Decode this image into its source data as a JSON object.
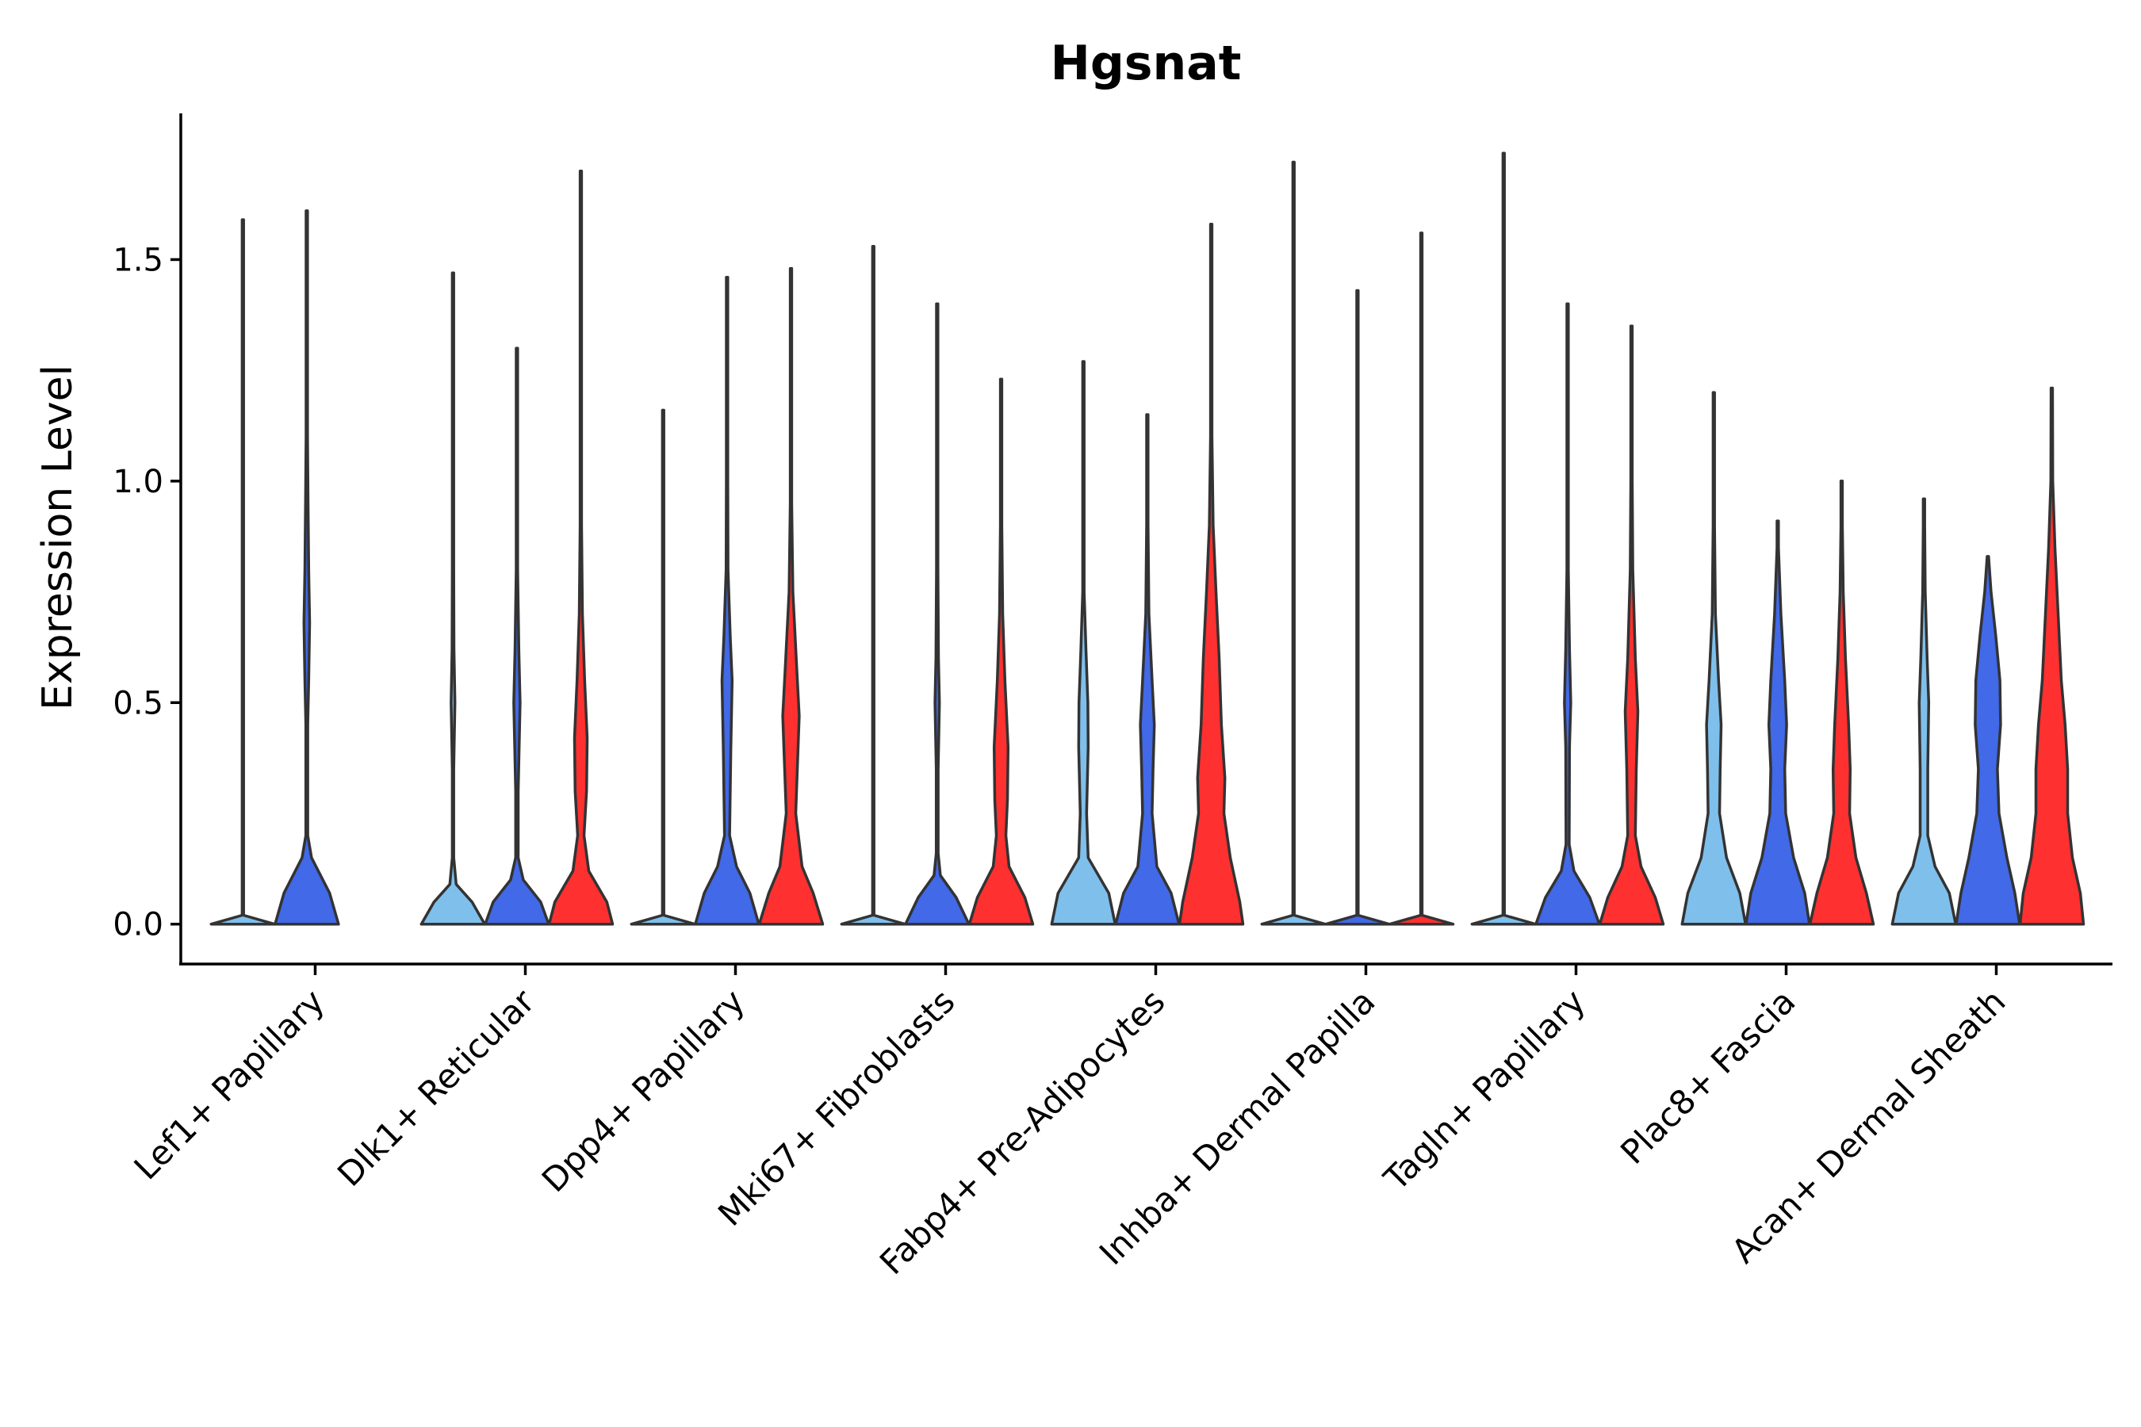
{
  "chart_data": {
    "type": "violin",
    "title": "Hgsnat",
    "xlabel": "",
    "ylabel": "Expression Level",
    "ylim": [
      -0.09,
      1.83
    ],
    "yticks": [
      0.0,
      0.5,
      1.0,
      1.5
    ],
    "ytick_labels": [
      "0.0",
      "0.5",
      "1.0",
      "1.5"
    ],
    "grid": false,
    "legend": "none",
    "series": [
      {
        "name": "group-1",
        "color": "#7fbfeb"
      },
      {
        "name": "group-2",
        "color": "#4169e8"
      },
      {
        "name": "group-3",
        "color": "#ff3030"
      }
    ],
    "categories": [
      "Lef1+ Papillary",
      "Dlk1+ Reticular",
      "Dpp4+ Papillary",
      "Mki67+ Fibroblasts",
      "Fabp4+ Pre-Adipocytes",
      "Inhba+ Dermal Papilla",
      "Tagln+ Papillary",
      "Plac8+ Fascia",
      "Acan+ Dermal Sheath"
    ],
    "violins": [
      {
        "category": "Lef1+ Papillary",
        "series": "group-1",
        "max": 1.59,
        "profile": [
          [
            0,
            1.0
          ],
          [
            0.02,
            0.02
          ],
          [
            1.59,
            0.0
          ]
        ]
      },
      {
        "category": "Lef1+ Papillary",
        "series": "group-2",
        "max": 1.61,
        "profile": [
          [
            0,
            1.0
          ],
          [
            0.07,
            0.72
          ],
          [
            0.15,
            0.15
          ],
          [
            0.2,
            0.03
          ],
          [
            0.45,
            0.03
          ],
          [
            0.55,
            0.06
          ],
          [
            0.68,
            0.09
          ],
          [
            0.8,
            0.06
          ],
          [
            0.95,
            0.04
          ],
          [
            1.1,
            0.015
          ],
          [
            1.25,
            0.005
          ],
          [
            1.61,
            0.0
          ]
        ]
      },
      {
        "category": "Dlk1+ Reticular",
        "series": "group-1",
        "max": 1.47,
        "profile": [
          [
            0,
            1.0
          ],
          [
            0.05,
            0.6
          ],
          [
            0.09,
            0.1
          ],
          [
            0.15,
            0.02
          ],
          [
            0.35,
            0.02
          ],
          [
            0.5,
            0.06
          ],
          [
            0.62,
            0.03
          ],
          [
            0.8,
            0.01
          ],
          [
            1.0,
            0.005
          ],
          [
            1.47,
            0.0
          ]
        ]
      },
      {
        "category": "Dlk1+ Reticular",
        "series": "group-2",
        "max": 1.3,
        "profile": [
          [
            0,
            1.0
          ],
          [
            0.05,
            0.75
          ],
          [
            0.1,
            0.2
          ],
          [
            0.15,
            0.04
          ],
          [
            0.3,
            0.04
          ],
          [
            0.5,
            0.1
          ],
          [
            0.62,
            0.06
          ],
          [
            0.8,
            0.02
          ],
          [
            1.0,
            0.005
          ],
          [
            1.3,
            0.0
          ]
        ]
      },
      {
        "category": "Dlk1+ Reticular",
        "series": "group-3",
        "max": 1.7,
        "profile": [
          [
            0,
            1.0
          ],
          [
            0.05,
            0.82
          ],
          [
            0.12,
            0.25
          ],
          [
            0.2,
            0.1
          ],
          [
            0.3,
            0.18
          ],
          [
            0.42,
            0.2
          ],
          [
            0.55,
            0.12
          ],
          [
            0.7,
            0.05
          ],
          [
            0.9,
            0.02
          ],
          [
            1.2,
            0.005
          ],
          [
            1.7,
            0.0
          ]
        ]
      },
      {
        "category": "Dpp4+ Papillary",
        "series": "group-1",
        "max": 1.16,
        "profile": [
          [
            0,
            1.0
          ],
          [
            0.02,
            0.02
          ],
          [
            1.16,
            0.0
          ]
        ]
      },
      {
        "category": "Dpp4+ Papillary",
        "series": "group-2",
        "max": 1.46,
        "profile": [
          [
            0,
            1.0
          ],
          [
            0.07,
            0.72
          ],
          [
            0.13,
            0.3
          ],
          [
            0.2,
            0.08
          ],
          [
            0.4,
            0.12
          ],
          [
            0.55,
            0.16
          ],
          [
            0.65,
            0.1
          ],
          [
            0.8,
            0.03
          ],
          [
            1.0,
            0.008
          ],
          [
            1.46,
            0.0
          ]
        ]
      },
      {
        "category": "Dpp4+ Papillary",
        "series": "group-3",
        "max": 1.48,
        "profile": [
          [
            0,
            1.0
          ],
          [
            0.07,
            0.7
          ],
          [
            0.13,
            0.35
          ],
          [
            0.25,
            0.15
          ],
          [
            0.35,
            0.2
          ],
          [
            0.47,
            0.26
          ],
          [
            0.58,
            0.18
          ],
          [
            0.75,
            0.06
          ],
          [
            0.95,
            0.015
          ],
          [
            1.48,
            0.0
          ]
        ]
      },
      {
        "category": "Mki67+ Fibroblasts",
        "series": "group-1",
        "max": 1.53,
        "profile": [
          [
            0,
            1.0
          ],
          [
            0.02,
            0.02
          ],
          [
            1.53,
            0.0
          ]
        ]
      },
      {
        "category": "Mki67+ Fibroblasts",
        "series": "group-2",
        "max": 1.4,
        "profile": [
          [
            0,
            1.0
          ],
          [
            0.06,
            0.6
          ],
          [
            0.11,
            0.1
          ],
          [
            0.16,
            0.03
          ],
          [
            0.35,
            0.03
          ],
          [
            0.5,
            0.07
          ],
          [
            0.6,
            0.04
          ],
          [
            0.8,
            0.01
          ],
          [
            1.4,
            0.0
          ]
        ]
      },
      {
        "category": "Mki67+ Fibroblasts",
        "series": "group-3",
        "max": 1.23,
        "profile": [
          [
            0,
            1.0
          ],
          [
            0.06,
            0.75
          ],
          [
            0.13,
            0.25
          ],
          [
            0.2,
            0.15
          ],
          [
            0.28,
            0.2
          ],
          [
            0.4,
            0.22
          ],
          [
            0.55,
            0.12
          ],
          [
            0.7,
            0.05
          ],
          [
            0.9,
            0.01
          ],
          [
            1.23,
            0.0
          ]
        ]
      },
      {
        "category": "Fabp4+ Pre-Adipocytes",
        "series": "group-1",
        "max": 1.27,
        "profile": [
          [
            0,
            1.0
          ],
          [
            0.07,
            0.8
          ],
          [
            0.15,
            0.15
          ],
          [
            0.25,
            0.1
          ],
          [
            0.4,
            0.15
          ],
          [
            0.5,
            0.14
          ],
          [
            0.62,
            0.08
          ],
          [
            0.75,
            0.02
          ],
          [
            1.0,
            0.005
          ],
          [
            1.27,
            0.0
          ]
        ]
      },
      {
        "category": "Fabp4+ Pre-Adipocytes",
        "series": "group-2",
        "max": 1.15,
        "profile": [
          [
            0,
            1.0
          ],
          [
            0.07,
            0.75
          ],
          [
            0.13,
            0.3
          ],
          [
            0.25,
            0.15
          ],
          [
            0.35,
            0.18
          ],
          [
            0.45,
            0.22
          ],
          [
            0.55,
            0.15
          ],
          [
            0.7,
            0.05
          ],
          [
            0.9,
            0.01
          ],
          [
            1.15,
            0.0
          ]
        ]
      },
      {
        "category": "Fabp4+ Pre-Adipocytes",
        "series": "group-3",
        "max": 1.58,
        "profile": [
          [
            0,
            1.0
          ],
          [
            0.05,
            0.9
          ],
          [
            0.15,
            0.6
          ],
          [
            0.25,
            0.4
          ],
          [
            0.33,
            0.43
          ],
          [
            0.45,
            0.32
          ],
          [
            0.6,
            0.25
          ],
          [
            0.75,
            0.15
          ],
          [
            0.9,
            0.06
          ],
          [
            1.1,
            0.01
          ],
          [
            1.58,
            0.0
          ]
        ]
      },
      {
        "category": "Inhba+ Dermal Papilla",
        "series": "group-1",
        "max": 1.72,
        "profile": [
          [
            0,
            1.0
          ],
          [
            0.02,
            0.02
          ],
          [
            1.72,
            0.0
          ]
        ]
      },
      {
        "category": "Inhba+ Dermal Papilla",
        "series": "group-2",
        "max": 1.43,
        "profile": [
          [
            0,
            1.0
          ],
          [
            0.02,
            0.02
          ],
          [
            1.43,
            0.0
          ]
        ]
      },
      {
        "category": "Inhba+ Dermal Papilla",
        "series": "group-3",
        "max": 1.56,
        "profile": [
          [
            0,
            1.0
          ],
          [
            0.02,
            0.02
          ],
          [
            1.56,
            0.0
          ]
        ]
      },
      {
        "category": "Tagln+ Papillary",
        "series": "group-1",
        "max": 1.74,
        "profile": [
          [
            0,
            1.0
          ],
          [
            0.02,
            0.02
          ],
          [
            1.74,
            0.0
          ]
        ]
      },
      {
        "category": "Tagln+ Papillary",
        "series": "group-2",
        "max": 1.4,
        "profile": [
          [
            0,
            1.0
          ],
          [
            0.06,
            0.7
          ],
          [
            0.12,
            0.2
          ],
          [
            0.18,
            0.05
          ],
          [
            0.4,
            0.06
          ],
          [
            0.5,
            0.1
          ],
          [
            0.62,
            0.06
          ],
          [
            0.8,
            0.02
          ],
          [
            1.0,
            0.005
          ],
          [
            1.4,
            0.0
          ]
        ]
      },
      {
        "category": "Tagln+ Papillary",
        "series": "group-3",
        "max": 1.35,
        "profile": [
          [
            0,
            1.0
          ],
          [
            0.06,
            0.75
          ],
          [
            0.13,
            0.3
          ],
          [
            0.2,
            0.12
          ],
          [
            0.35,
            0.15
          ],
          [
            0.48,
            0.2
          ],
          [
            0.6,
            0.12
          ],
          [
            0.8,
            0.04
          ],
          [
            1.0,
            0.01
          ],
          [
            1.35,
            0.0
          ]
        ]
      },
      {
        "category": "Plac8+ Fascia",
        "series": "group-1",
        "max": 1.2,
        "profile": [
          [
            0,
            1.0
          ],
          [
            0.07,
            0.82
          ],
          [
            0.15,
            0.4
          ],
          [
            0.25,
            0.18
          ],
          [
            0.35,
            0.2
          ],
          [
            0.45,
            0.23
          ],
          [
            0.55,
            0.15
          ],
          [
            0.7,
            0.05
          ],
          [
            0.9,
            0.01
          ],
          [
            1.2,
            0.0
          ]
        ]
      },
      {
        "category": "Plac8+ Fascia",
        "series": "group-2",
        "max": 0.91,
        "profile": [
          [
            0,
            1.0
          ],
          [
            0.07,
            0.85
          ],
          [
            0.15,
            0.5
          ],
          [
            0.25,
            0.25
          ],
          [
            0.35,
            0.22
          ],
          [
            0.45,
            0.28
          ],
          [
            0.55,
            0.22
          ],
          [
            0.7,
            0.1
          ],
          [
            0.85,
            0.02
          ],
          [
            0.91,
            0.0
          ]
        ]
      },
      {
        "category": "Plac8+ Fascia",
        "series": "group-3",
        "max": 1.0,
        "profile": [
          [
            0,
            1.0
          ],
          [
            0.07,
            0.78
          ],
          [
            0.15,
            0.45
          ],
          [
            0.25,
            0.25
          ],
          [
            0.35,
            0.27
          ],
          [
            0.45,
            0.22
          ],
          [
            0.6,
            0.12
          ],
          [
            0.75,
            0.05
          ],
          [
            0.9,
            0.01
          ],
          [
            1.0,
            0.0
          ]
        ]
      },
      {
        "category": "Acan+ Dermal Sheath",
        "series": "group-1",
        "max": 0.96,
        "profile": [
          [
            0,
            1.0
          ],
          [
            0.07,
            0.8
          ],
          [
            0.13,
            0.35
          ],
          [
            0.2,
            0.12
          ],
          [
            0.35,
            0.12
          ],
          [
            0.5,
            0.15
          ],
          [
            0.6,
            0.1
          ],
          [
            0.75,
            0.04
          ],
          [
            0.9,
            0.01
          ],
          [
            0.96,
            0.0
          ]
        ]
      },
      {
        "category": "Acan+ Dermal Sheath",
        "series": "group-2",
        "max": 0.83,
        "profile": [
          [
            0,
            1.0
          ],
          [
            0.07,
            0.85
          ],
          [
            0.15,
            0.6
          ],
          [
            0.25,
            0.35
          ],
          [
            0.35,
            0.3
          ],
          [
            0.45,
            0.4
          ],
          [
            0.55,
            0.38
          ],
          [
            0.65,
            0.25
          ],
          [
            0.75,
            0.1
          ],
          [
            0.83,
            0.0
          ]
        ]
      },
      {
        "category": "Acan+ Dermal Sheath",
        "series": "group-3",
        "max": 1.21,
        "profile": [
          [
            0,
            1.0
          ],
          [
            0.07,
            0.9
          ],
          [
            0.15,
            0.65
          ],
          [
            0.25,
            0.5
          ],
          [
            0.35,
            0.5
          ],
          [
            0.45,
            0.42
          ],
          [
            0.55,
            0.3
          ],
          [
            0.7,
            0.2
          ],
          [
            0.85,
            0.1
          ],
          [
            1.0,
            0.03
          ],
          [
            1.21,
            0.0
          ]
        ]
      }
    ]
  }
}
